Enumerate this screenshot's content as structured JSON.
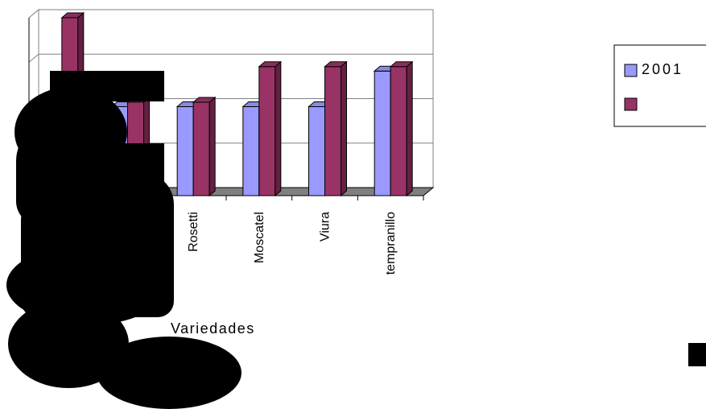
{
  "chart_data": {
    "type": "bar",
    "xlabel": "Variedades",
    "categories": [
      "",
      "",
      "Rosetti",
      "Moscatel",
      "Viura",
      "tempranillo"
    ],
    "series": [
      {
        "name": "2001",
        "color": "#9999ff",
        "values": [
          2.0,
          2.0,
          2.0,
          2.0,
          2.0,
          2.8
        ]
      },
      {
        "name": "",
        "color": "#993366",
        "values": [
          4.0,
          2.1,
          2.1,
          2.9,
          2.9,
          2.9
        ]
      }
    ],
    "ylim": [
      0,
      4
    ],
    "grid": true,
    "legend_position": "right"
  },
  "occlusion": {
    "color": "#000000"
  }
}
